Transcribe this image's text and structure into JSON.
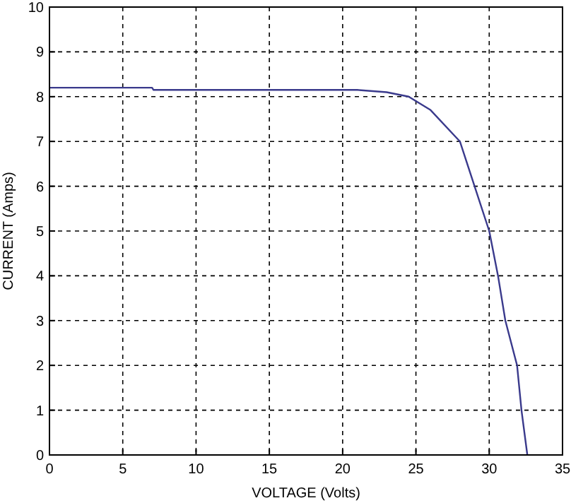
{
  "chart_data": {
    "type": "line",
    "xlabel": "VOLTAGE (Volts)",
    "ylabel": "CURRENT (Amps)",
    "x": [
      0,
      7,
      7.1,
      21,
      23,
      24.5,
      26,
      28,
      29,
      30,
      30.6,
      31.1,
      31.9,
      32.2,
      32.6
    ],
    "series": [
      {
        "color": "#3a3a8c",
        "values": [
          8.2,
          8.2,
          8.15,
          8.15,
          8.1,
          8.0,
          7.7,
          7.0,
          6.0,
          5.0,
          4.0,
          3.0,
          2.0,
          1.0,
          0
        ]
      }
    ],
    "xlim": [
      0,
      35
    ],
    "xticks": [
      0,
      5,
      10,
      15,
      20,
      25,
      30,
      35
    ],
    "ylim": [
      0,
      10
    ],
    "yticks": [
      0,
      1,
      2,
      3,
      4,
      5,
      6,
      7,
      8,
      9,
      10
    ],
    "grid": true,
    "line_style": "solid",
    "marker": "none"
  }
}
